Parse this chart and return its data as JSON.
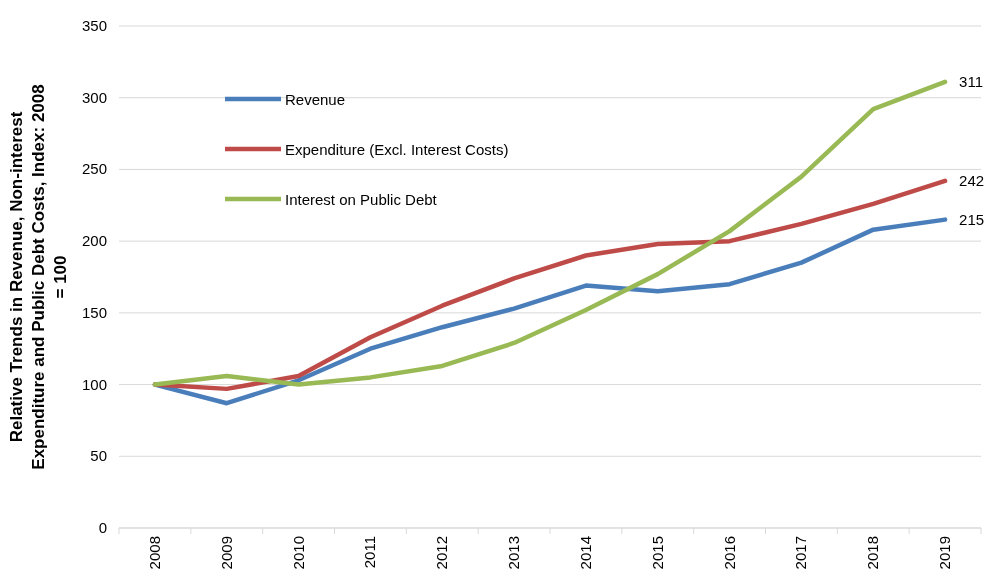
{
  "chart_data": {
    "type": "line",
    "ylabel": "Relative Trends in Revenue,  Non-interest Expenditure and Public Debt Costs, Index: 2008 = 100",
    "categories": [
      "2008",
      "2009",
      "2010",
      "2011",
      "2012",
      "2013",
      "2014",
      "2015",
      "2016",
      "2017",
      "2018",
      "2019"
    ],
    "ylim": [
      0,
      350
    ],
    "yticks": [
      0,
      50,
      100,
      150,
      200,
      250,
      300,
      350
    ],
    "grid": "y",
    "legend": "top left",
    "marker": "none",
    "line_style": "solid",
    "series": [
      {
        "name": "Revenue",
        "color": "#4a7ebb",
        "values": [
          100,
          87,
          103,
          125,
          140,
          153,
          169,
          165,
          170,
          185,
          208,
          215
        ],
        "value_labels": [
          null,
          null,
          null,
          null,
          null,
          null,
          null,
          null,
          null,
          null,
          null,
          "215"
        ]
      },
      {
        "name": "Expenditure (Excl. Interest Costs)",
        "color": "#be4b48",
        "values": [
          100,
          97,
          106,
          133,
          155,
          174,
          190,
          198,
          200,
          212,
          226,
          242
        ],
        "value_labels": [
          null,
          null,
          null,
          null,
          null,
          null,
          null,
          null,
          null,
          null,
          null,
          "242"
        ]
      },
      {
        "name": "Interest on Public Debt",
        "color": "#98b954",
        "values": [
          100,
          106,
          100,
          105,
          113,
          129,
          152,
          177,
          207,
          245,
          292,
          311
        ],
        "value_labels": [
          null,
          null,
          null,
          null,
          null,
          null,
          null,
          null,
          null,
          null,
          null,
          "311"
        ]
      }
    ]
  }
}
